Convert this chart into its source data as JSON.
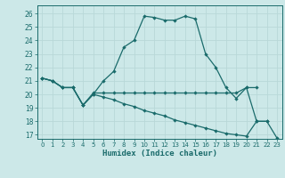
{
  "xlabel": "Humidex (Indice chaleur)",
  "bg_color": "#cce8e8",
  "grid_color": "#b8d8d8",
  "line_color": "#1a6b6b",
  "xlim": [
    -0.5,
    23.5
  ],
  "ylim": [
    16.7,
    26.6
  ],
  "ytick_vals": [
    17,
    18,
    19,
    20,
    21,
    22,
    23,
    24,
    25,
    26
  ],
  "xtick_vals": [
    0,
    1,
    2,
    3,
    4,
    5,
    6,
    7,
    8,
    9,
    10,
    11,
    12,
    13,
    14,
    15,
    16,
    17,
    18,
    19,
    20,
    21,
    22,
    23
  ],
  "curve1_x": [
    0,
    1,
    2,
    3,
    4,
    5,
    6,
    7,
    8,
    9,
    10,
    11,
    12,
    13,
    14,
    15,
    16,
    17,
    18,
    19,
    20,
    21,
    22
  ],
  "curve1_y": [
    21.2,
    21.0,
    20.5,
    20.5,
    19.2,
    20.0,
    21.0,
    21.7,
    23.5,
    24.0,
    25.8,
    25.7,
    25.5,
    25.5,
    25.8,
    25.6,
    23.0,
    22.0,
    20.5,
    19.7,
    20.5,
    18.0,
    18.0
  ],
  "curve2_x": [
    0,
    1,
    2,
    3,
    4,
    5,
    6,
    7,
    8,
    9,
    10,
    11,
    12,
    13,
    14,
    15,
    16,
    17,
    18,
    19,
    20,
    21
  ],
  "curve2_y": [
    21.2,
    21.0,
    20.5,
    20.5,
    19.2,
    20.1,
    20.1,
    20.1,
    20.1,
    20.1,
    20.1,
    20.1,
    20.1,
    20.1,
    20.1,
    20.1,
    20.1,
    20.1,
    20.1,
    20.1,
    20.5,
    20.5
  ],
  "curve3_x": [
    0,
    1,
    2,
    3,
    4,
    5,
    6,
    7,
    8,
    9,
    10,
    11,
    12,
    13,
    14,
    15,
    16,
    17,
    18,
    19,
    20,
    21,
    22,
    23
  ],
  "curve3_y": [
    21.2,
    21.0,
    20.5,
    20.5,
    19.2,
    20.0,
    19.8,
    19.6,
    19.3,
    19.1,
    18.8,
    18.6,
    18.4,
    18.1,
    17.9,
    17.7,
    17.5,
    17.3,
    17.1,
    17.0,
    16.9,
    18.0,
    18.0,
    16.75
  ]
}
